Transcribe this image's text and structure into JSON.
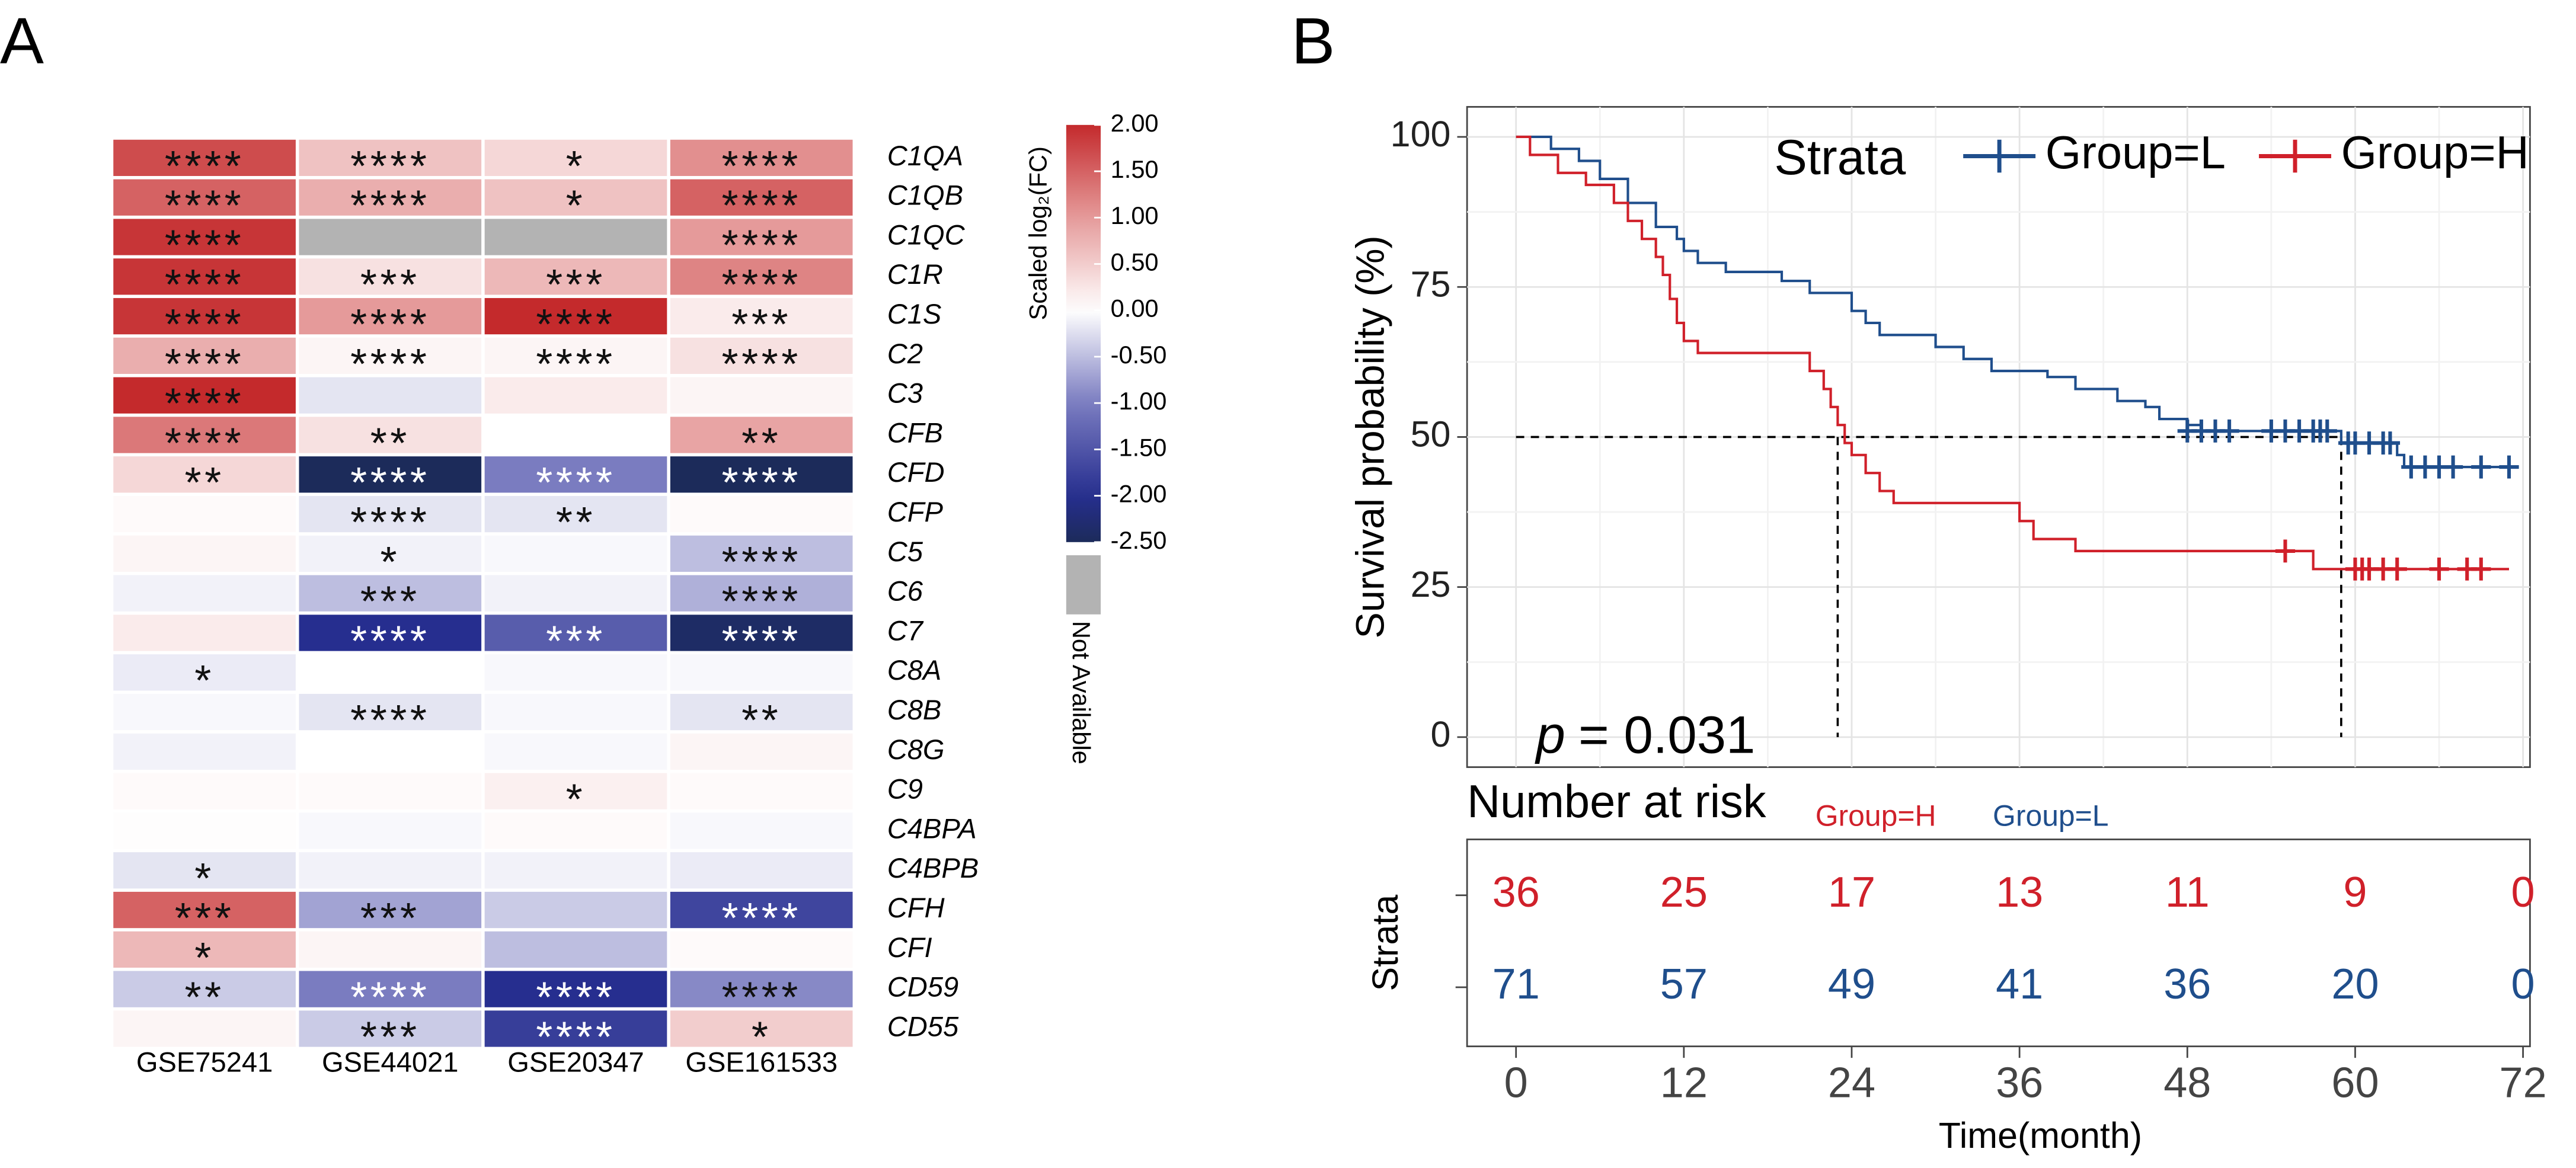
{
  "chart_data": [
    {
      "type": "heatmap",
      "panel": "A",
      "categories": [
        "C1QA",
        "C1QB",
        "C1QC",
        "C1R",
        "C1S",
        "C2",
        "C3",
        "CFB",
        "CFD",
        "CFP",
        "C5",
        "C6",
        "C7",
        "C8A",
        "C8B",
        "C8G",
        "C9",
        "C4BPA",
        "C4BPB",
        "CFH",
        "CFI",
        "CD59",
        "CD55"
      ],
      "series": [
        {
          "name": "GSE75241",
          "values": [
            1.7,
            1.5,
            1.9,
            1.9,
            1.9,
            0.8,
            2.0,
            1.3,
            0.4,
            0.05,
            0.1,
            -0.1,
            0.2,
            -0.15,
            -0.05,
            -0.1,
            0.05,
            0.02,
            -0.2,
            1.5,
            0.7,
            -0.4,
            0.1
          ],
          "stars": [
            "****",
            "****",
            "****",
            "****",
            "****",
            "****",
            "****",
            "****",
            "**",
            null,
            null,
            null,
            null,
            "*",
            null,
            null,
            null,
            null,
            "*",
            "***",
            "*",
            "**",
            null
          ]
        },
        {
          "name": "GSE44021",
          "values": [
            0.6,
            0.8,
            null,
            0.3,
            1.0,
            0.1,
            -0.2,
            0.3,
            -2.5,
            -0.2,
            -0.1,
            -0.5,
            -2.0,
            0,
            -0.2,
            0,
            0.05,
            -0.05,
            -0.1,
            -0.7,
            0.1,
            -1.0,
            -0.4
          ],
          "stars": [
            "****",
            "****",
            null,
            "***",
            "****",
            "****",
            null,
            "**",
            "****",
            "****",
            "*",
            "***",
            "****",
            null,
            "****",
            null,
            null,
            null,
            null,
            "***",
            null,
            "****",
            "***"
          ]
        },
        {
          "name": "GSE20347",
          "values": [
            0.4,
            0.6,
            null,
            0.7,
            2.0,
            0.1,
            0.2,
            0,
            -1.0,
            -0.2,
            -0.05,
            -0.1,
            -1.4,
            -0.05,
            -0.05,
            -0.05,
            0.15,
            0.05,
            -0.1,
            -0.4,
            -0.5,
            -2.0,
            -1.8
          ],
          "stars": [
            "*",
            "*",
            null,
            "***",
            "****",
            "****",
            null,
            null,
            "****",
            "**",
            null,
            null,
            "***",
            null,
            null,
            null,
            "*",
            null,
            null,
            null,
            null,
            "****",
            "****"
          ]
        },
        {
          "name": "GSE161533",
          "values": [
            1.1,
            1.5,
            1.0,
            1.2,
            0.2,
            0.3,
            0.1,
            0.9,
            -2.5,
            0.05,
            -0.5,
            -0.6,
            -2.4,
            -0.05,
            -0.2,
            0.1,
            0.05,
            -0.05,
            -0.15,
            -1.7,
            0.05,
            -0.9,
            0.5
          ],
          "stars": [
            "****",
            "****",
            "****",
            "****",
            "***",
            "****",
            null,
            "**",
            "****",
            null,
            "****",
            "****",
            "****",
            null,
            "**",
            null,
            null,
            null,
            null,
            "****",
            null,
            "****",
            "*"
          ]
        }
      ],
      "colorbar": {
        "title": "Scaled log₂(FC)",
        "lim": [
          -2.5,
          2
        ],
        "ticks": [
          {
            "value": 2,
            "label": "2.00"
          },
          {
            "value": 1.5,
            "label": "1.50"
          },
          {
            "value": 1,
            "label": "1.00"
          },
          {
            "value": 0.5,
            "label": "0.50"
          },
          {
            "value": 0,
            "label": "0.00"
          },
          {
            "value": -0.5,
            "label": "-0.50"
          },
          {
            "value": -1,
            "label": "-1.00"
          },
          {
            "value": -1.5,
            "label": "-1.50"
          },
          {
            "value": -2,
            "label": "-2.00"
          },
          {
            "value": -2.5,
            "label": "-2.50"
          }
        ]
      },
      "na_label": "Not Available",
      "na_color": "#b3b3b3"
    },
    {
      "type": "survival",
      "panel": "B",
      "ylabel": "Survival probability (%)",
      "xlabel": "Time(month)",
      "xlim": [
        -3.5,
        72.5
      ],
      "ylim": [
        -5,
        105
      ],
      "xticks": [
        0,
        12,
        24,
        36,
        48,
        60,
        72
      ],
      "yticks": [
        0,
        25,
        50,
        75,
        100
      ],
      "grid": true,
      "legend_title": "Strata",
      "legend": "top-right",
      "series": [
        {
          "name": "Group=L",
          "color": "#1f4e8c",
          "x": [
            0,
            2.5,
            4.5,
            6,
            8,
            10,
            11.5,
            12,
            13,
            15,
            19,
            21,
            24,
            25,
            26,
            30,
            32,
            34,
            38,
            40,
            43,
            45,
            46,
            48,
            49,
            59,
            63,
            63.5,
            71
          ],
          "values": [
            100,
            98,
            96,
            93,
            89,
            85,
            83,
            81,
            79,
            77.5,
            76,
            74,
            71,
            69,
            67,
            65,
            63,
            61,
            60,
            58,
            56,
            55,
            53,
            52,
            51,
            49,
            47,
            45,
            45
          ],
          "censor_x": [
            48,
            49,
            50,
            51,
            54,
            55,
            56,
            57,
            57.5,
            58,
            59.5,
            60,
            61,
            62,
            62.5,
            64,
            65,
            66,
            67,
            69,
            71
          ],
          "censor_values": [
            51,
            51,
            51,
            51,
            51,
            51,
            51,
            51,
            51,
            51,
            49,
            49,
            49,
            49,
            49,
            45,
            45,
            45,
            45,
            45,
            45
          ]
        },
        {
          "name": "Group=H",
          "color": "#d0202a",
          "x": [
            0,
            1,
            3,
            5,
            7,
            8,
            9,
            10,
            10.5,
            11,
            11.5,
            12,
            13,
            19,
            21,
            22,
            22.5,
            23,
            23.5,
            24,
            25,
            26,
            27,
            36,
            37,
            40,
            57,
            71
          ],
          "values": [
            100,
            97,
            94,
            92,
            89,
            86,
            83,
            80,
            77,
            73,
            69,
            66,
            64,
            64,
            61,
            58,
            55,
            52,
            49,
            47,
            44,
            41,
            39,
            36,
            33,
            31,
            28,
            28
          ],
          "censor_x": [
            55,
            60,
            60.5,
            61,
            62,
            63,
            66,
            68,
            69
          ],
          "censor_values": [
            31,
            28,
            28,
            28,
            28,
            28,
            28,
            28,
            28
          ]
        }
      ],
      "reference_y": 50,
      "median_x": [
        23,
        59
      ],
      "annotation": {
        "symbol": "p",
        "text": "= 0.031"
      },
      "risk_table": {
        "title": "Number at risk",
        "ylabel": "Strata",
        "rows": [
          {
            "name": "Group=H",
            "color": "#d0202a",
            "counts": [
              36,
              25,
              17,
              13,
              11,
              9,
              0
            ]
          },
          {
            "name": "Group=L",
            "color": "#1f4e8c",
            "counts": [
              71,
              57,
              49,
              41,
              36,
              20,
              0
            ]
          }
        ]
      }
    }
  ]
}
